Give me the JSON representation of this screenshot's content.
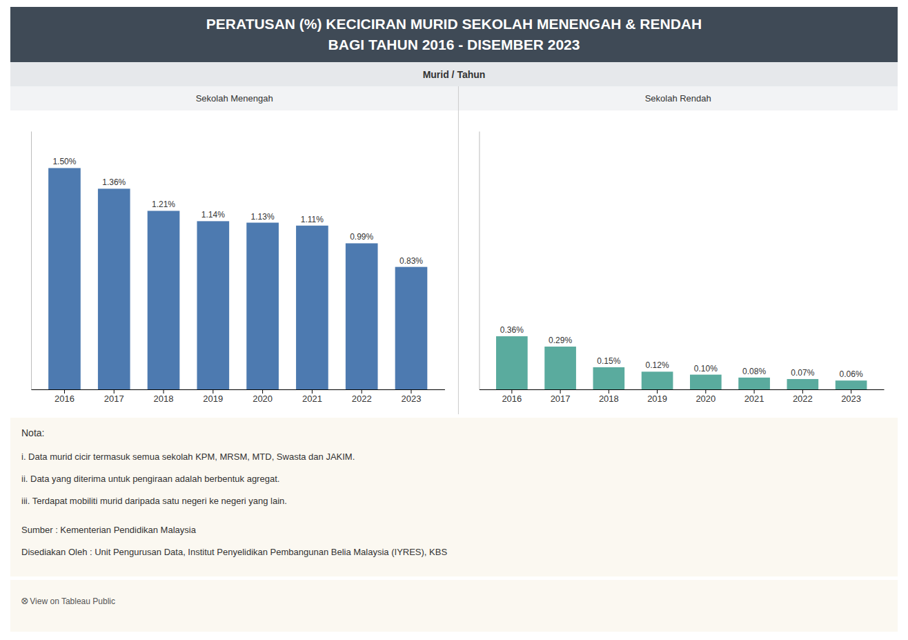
{
  "title": "PERATUSAN (%) KECICIRAN MURID SEKOLAH MENENGAH & RENDAH",
  "subtitle": "BAGI TAHUN 2016 - DISEMBER 2023",
  "annotations": [
    "Murid / Tahun",
    "Nota:",
    "i. Data murid cicir termasuk semua sekolah KPM, MRSM, MTD, Swasta dan JAKIM.",
    "ii. Data yang diterima untuk pengiraan adalah berbentuk agregat.",
    "iii. Terdapat mobiliti murid daripada satu negeri ke negeri yang lain.",
    "Sumber : Kementerian Pendidikan Malaysia",
    "Disediakan Oleh : Unit Pengurusan Data, Institut Penyelidikan Pembangunan Belia Malaysia (IYRES), KBS",
    "⭙  View on Tableau Public"
  ],
  "chart_data": [
    {
      "type": "bar",
      "title": "Sekolah Menengah",
      "categories": [
        "2016",
        "2017",
        "2018",
        "2019",
        "2020",
        "2021",
        "2022",
        "2023"
      ],
      "values": [
        1.5,
        1.36,
        1.21,
        1.14,
        1.13,
        1.11,
        0.99,
        0.83
      ],
      "value_labels": [
        "1.50%",
        "1.36%",
        "1.21%",
        "1.14%",
        "1.13%",
        "1.11%",
        "0.99%",
        "0.83%"
      ],
      "color": "#4d7ab0",
      "ylim": [
        0,
        1.75
      ],
      "tick_labels": "x",
      "grid": false,
      "data_labels": true
    },
    {
      "type": "bar",
      "title": "Sekolah Rendah",
      "categories": [
        "2016",
        "2017",
        "2018",
        "2019",
        "2020",
        "2021",
        "2022",
        "2023"
      ],
      "values": [
        0.36,
        0.29,
        0.15,
        0.12,
        0.1,
        0.08,
        0.07,
        0.06
      ],
      "value_labels": [
        "0.36%",
        "0.29%",
        "0.15%",
        "0.12%",
        "0.10%",
        "0.08%",
        "0.07%",
        "0.06%"
      ],
      "color": "#5aab9e",
      "ylim": [
        0,
        1.75
      ],
      "tick_labels": "x",
      "grid": false,
      "data_labels": true
    }
  ]
}
